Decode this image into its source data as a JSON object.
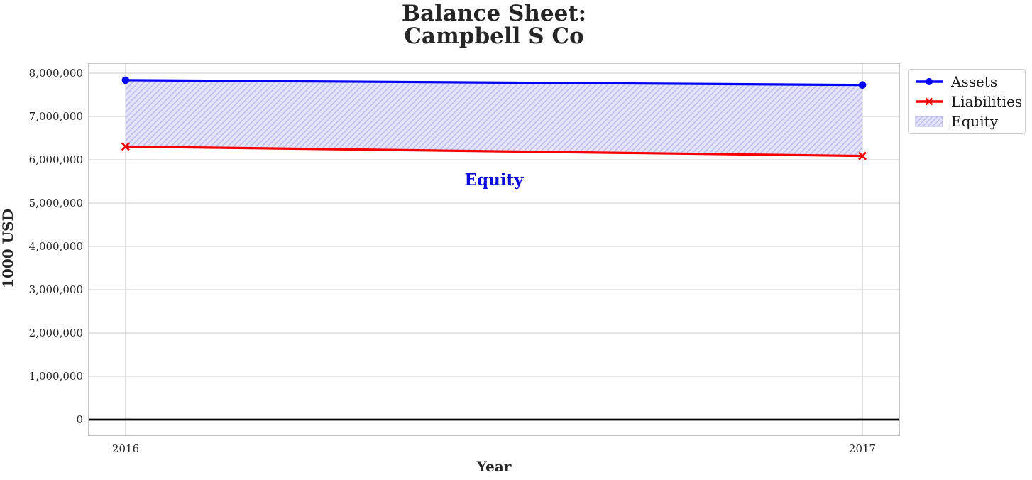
{
  "title": {
    "line1": "Balance Sheet:",
    "line2": "Campbell S Co"
  },
  "axis_labels": {
    "x": "Year",
    "y": "1000 USD"
  },
  "annotation": {
    "text": "Equity",
    "color": "#0b0bdd"
  },
  "legend": {
    "items": [
      {
        "label": "Assets",
        "swatch": "line-circle",
        "color": "#0000f5"
      },
      {
        "label": "Liabilities",
        "swatch": "line-x",
        "color": "#f50000"
      },
      {
        "label": "Equity",
        "swatch": "hatch-patch",
        "color": "#b7b7ec",
        "face": "#e4e4f8"
      }
    ]
  },
  "colors": {
    "assets_line": "#0000f5",
    "liabilities_line": "#f50000",
    "equity_face": "#e4e4f8",
    "equity_hatch": "#b7b7ec",
    "grid": "#d5d5d5",
    "spine": "#c7c7c7",
    "zero_line": "#000000",
    "text": "#262626"
  },
  "chart_data": {
    "type": "line",
    "title": "Balance Sheet:\nCampbell S Co",
    "xlabel": "Year",
    "ylabel": "1000 USD",
    "x": [
      2016,
      2017
    ],
    "series": [
      {
        "name": "Assets",
        "values": [
          7837000,
          7726000
        ],
        "color": "#0000f5",
        "marker": "circle",
        "linewidth": 3.2
      },
      {
        "name": "Liabilities",
        "values": [
          6304000,
          6089000
        ],
        "color": "#f50000",
        "marker": "x",
        "linewidth": 3.2
      }
    ],
    "fill_between": {
      "label": "Equity",
      "upper_series": "Assets",
      "lower_series": "Liabilities",
      "computed_values": [
        1533000,
        1637000
      ],
      "face_color": "#e4e4f8",
      "hatch": "/",
      "hatch_color": "#b7b7ec"
    },
    "xticks": [
      2016,
      2017
    ],
    "xtick_labels": [
      "2016",
      "2017"
    ],
    "ytick_values": [
      0,
      1000000,
      2000000,
      3000000,
      4000000,
      5000000,
      6000000,
      7000000,
      8000000
    ],
    "ytick_labels": [
      "0",
      "1,000,000",
      "2,000,000",
      "3,000,000",
      "4,000,000",
      "5,000,000",
      "6,000,000",
      "7,000,000",
      "8,000,000"
    ],
    "xlim": [
      2015.95,
      2017.05
    ],
    "ylim": [
      -361000,
      8213000
    ],
    "grid": true,
    "zero_line": true,
    "legend_position": "outside upper right"
  }
}
